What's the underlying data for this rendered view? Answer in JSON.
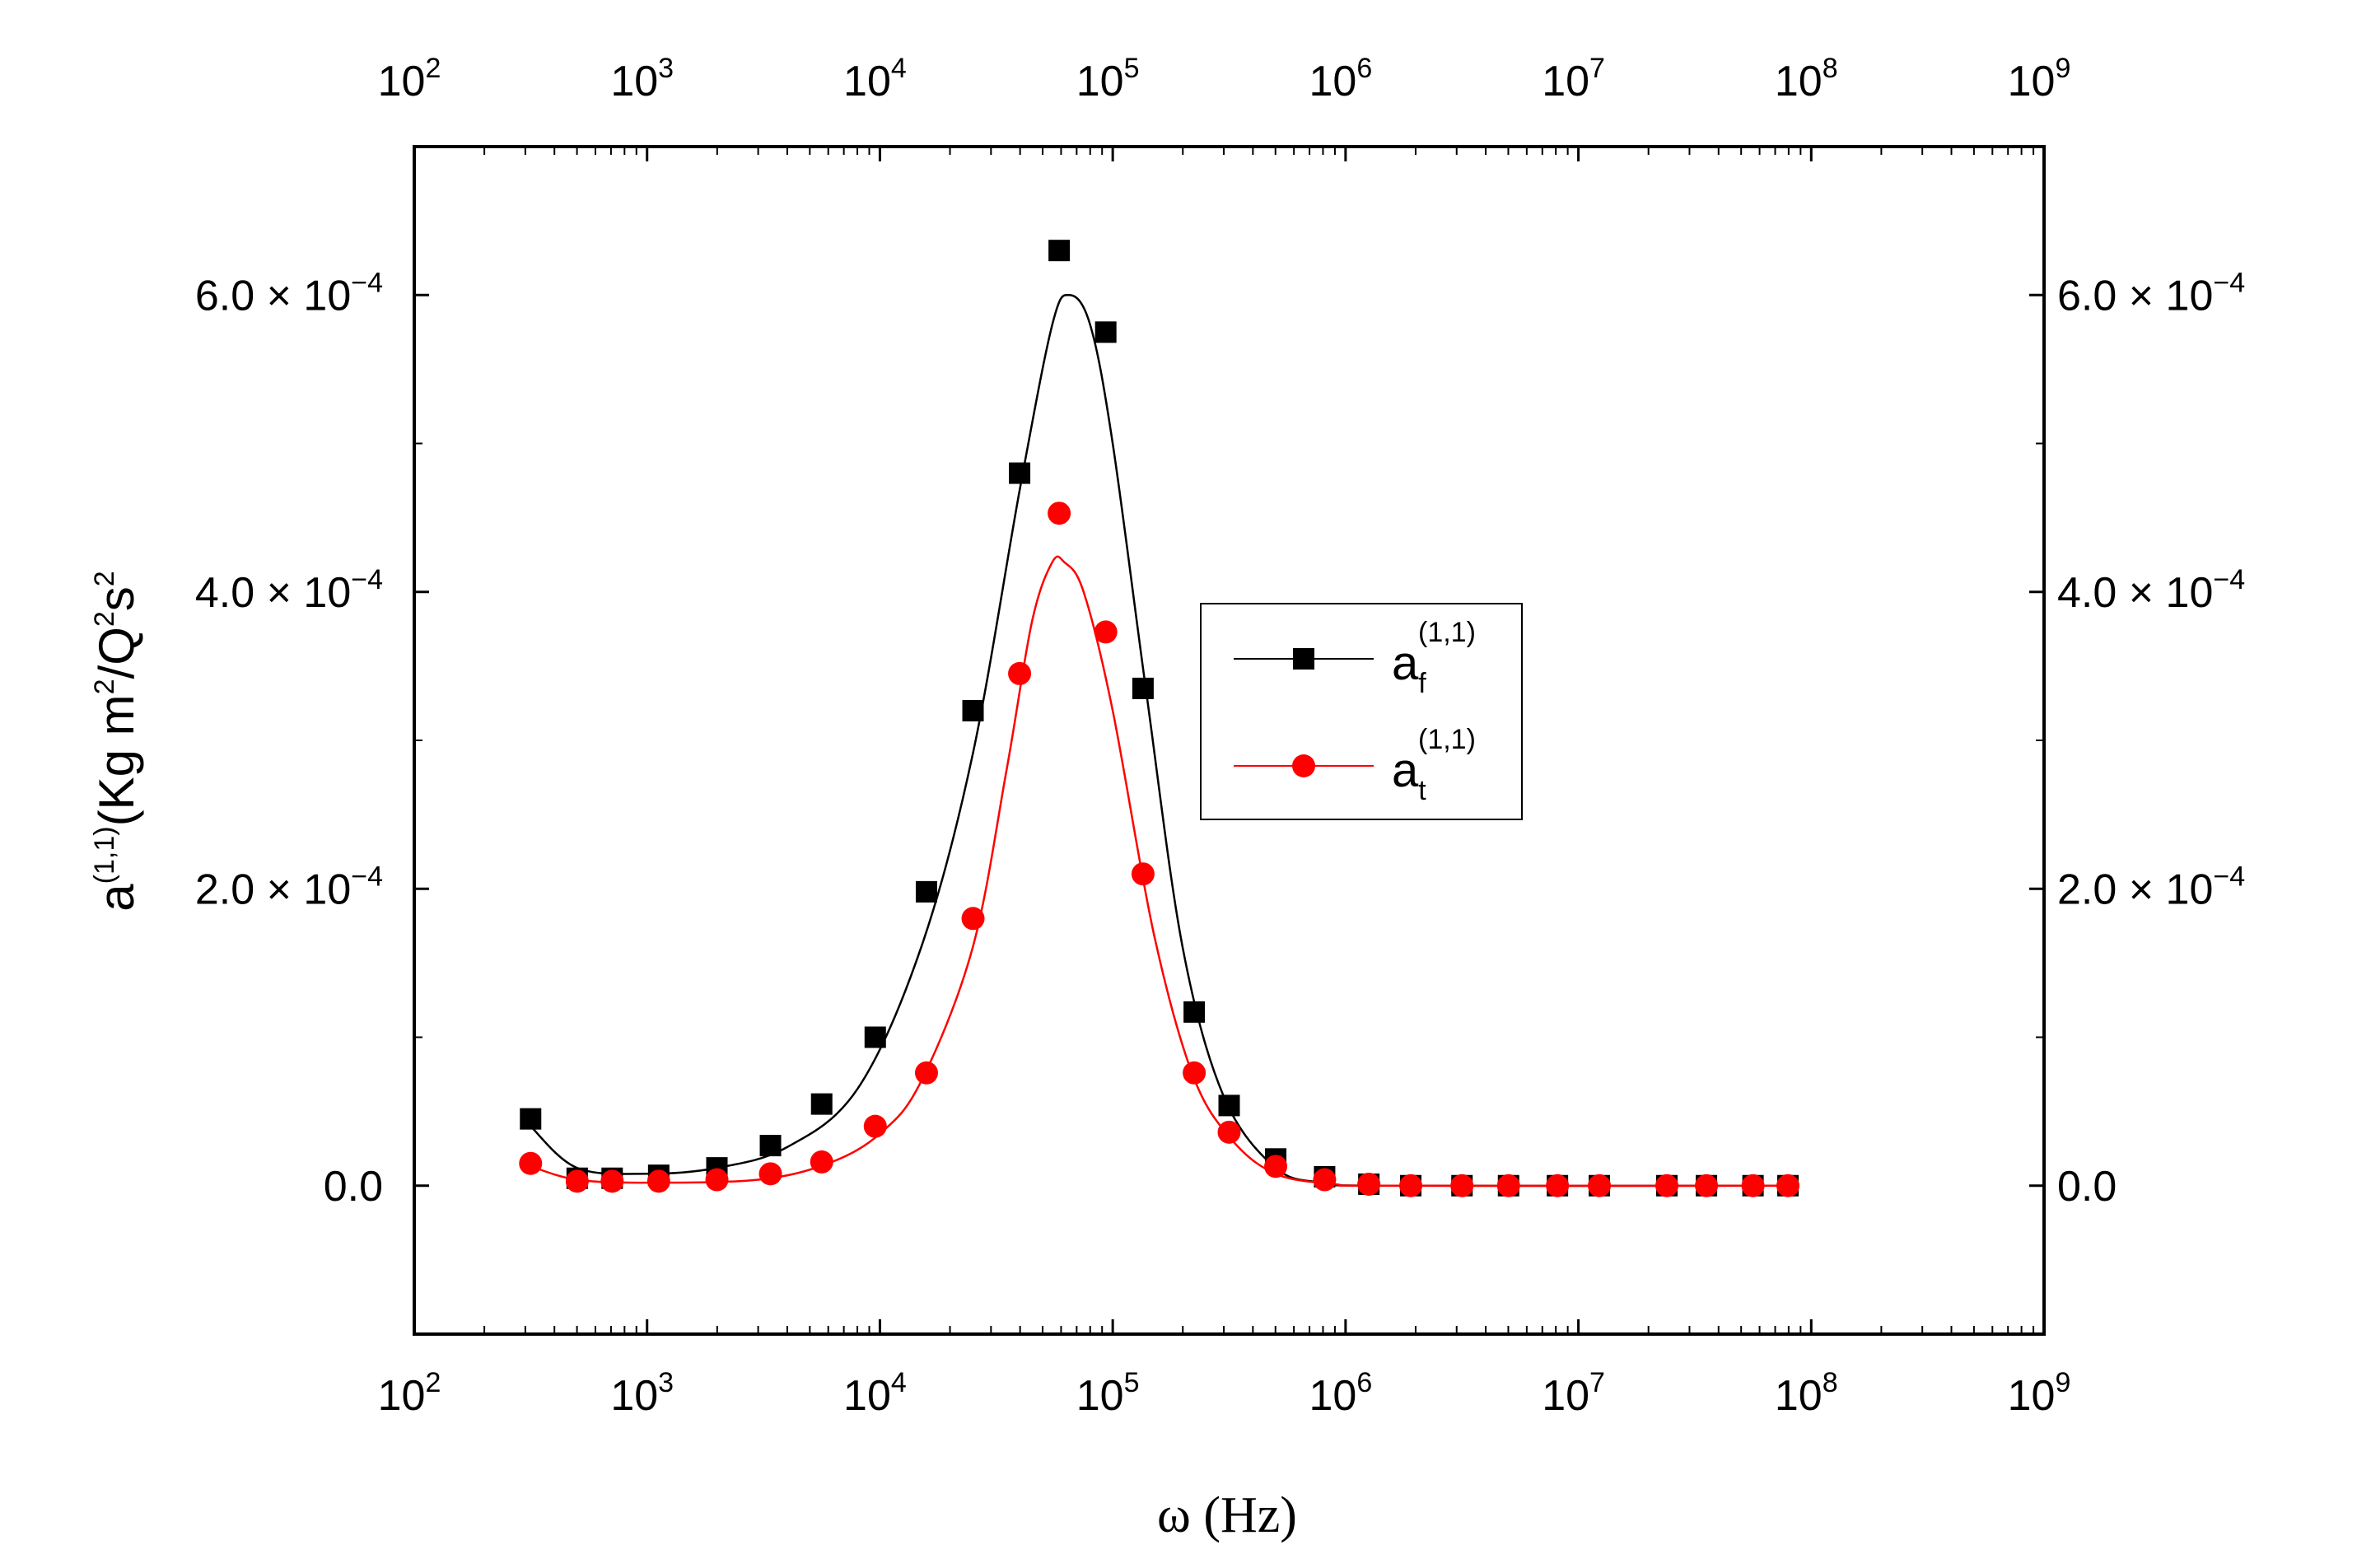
{
  "chart_data": {
    "type": "scatter",
    "title": "",
    "xlabel": "ω (Hz)",
    "ylabel": {
      "base": "a",
      "sup": "(1,1)",
      "text1": "(Kg m",
      "sup2": "2",
      "text2": "/Q",
      "sup3": "2",
      "text3": "s",
      "sup4": "2"
    },
    "xscale": "log",
    "xlim": [
      100,
      1000000000
    ],
    "ylim": [
      -0.0001,
      0.0007
    ],
    "x_ticks": [
      {
        "base": "10",
        "exp": "2"
      },
      {
        "base": "10",
        "exp": "3"
      },
      {
        "base": "10",
        "exp": "4"
      },
      {
        "base": "10",
        "exp": "5"
      },
      {
        "base": "10",
        "exp": "6"
      },
      {
        "base": "10",
        "exp": "7"
      },
      {
        "base": "10",
        "exp": "8"
      },
      {
        "base": "10",
        "exp": "9"
      }
    ],
    "x_tick_values": [
      100,
      1000,
      10000,
      100000,
      1000000,
      10000000,
      100000000,
      1000000000
    ],
    "y_ticks": [
      {
        "value": 0,
        "mant": "0.0",
        "exp": ""
      },
      {
        "value": 0.0002,
        "mant": "2.0 × 10",
        "exp": "−4"
      },
      {
        "value": 0.0004,
        "mant": "4.0 × 10",
        "exp": "−4"
      },
      {
        "value": 0.0006,
        "mant": "6.0 × 10",
        "exp": "−4"
      }
    ],
    "legend_position": "center-right",
    "series": [
      {
        "name": "a_f^(1,1)",
        "legend_base": "a",
        "legend_sub": "f",
        "legend_sup": "(1,1)",
        "color": "#000000",
        "marker": "square",
        "points": [
          [
            316,
            4.5e-05
          ],
          [
            501,
            5e-06
          ],
          [
            708,
            5e-06
          ],
          [
            1122,
            7e-06
          ],
          [
            1995,
            1.2e-05
          ],
          [
            3388,
            2.7e-05
          ],
          [
            5623,
            5.5e-05
          ],
          [
            9550,
            0.0001
          ],
          [
            15849,
            0.000198
          ],
          [
            25119,
            0.00032
          ],
          [
            39811,
            0.00048
          ],
          [
            58884,
            0.00063
          ],
          [
            93325,
            0.000575
          ],
          [
            134896,
            0.000335
          ],
          [
            223872,
            0.000117
          ],
          [
            316228,
            5.4e-05
          ],
          [
            501187,
            1.8e-05
          ],
          [
            812831,
            6e-06
          ],
          [
            1258925,
            1e-06
          ],
          [
            1905461,
            0
          ],
          [
            3162278,
            0
          ],
          [
            5011872,
            0
          ],
          [
            8128305,
            0
          ],
          [
            12302688,
            0
          ],
          [
            23988329,
            0
          ],
          [
            35481339,
            0
          ],
          [
            56234133,
            0
          ],
          [
            79432823,
            0
          ]
        ],
        "fit": [
          [
            316,
            4e-05
          ],
          [
            500,
            1.2e-05
          ],
          [
            1000,
            8e-06
          ],
          [
            2000,
            1.2e-05
          ],
          [
            4000,
            2.6e-05
          ],
          [
            8000,
            6.5e-05
          ],
          [
            15000,
            0.00016
          ],
          [
            25000,
            0.00029
          ],
          [
            40000,
            0.00047
          ],
          [
            55000,
            0.00058
          ],
          [
            65000,
            0.0006
          ],
          [
            80000,
            0.00058
          ],
          [
            100000,
            0.0005
          ],
          [
            140000,
            0.00033
          ],
          [
            200000,
            0.00016
          ],
          [
            300000,
            6e-05
          ],
          [
            500000,
            1.2e-05
          ],
          [
            800000,
            2e-06
          ],
          [
            1500000,
            0
          ],
          [
            80000000,
            0
          ]
        ]
      },
      {
        "name": "a_t^(1,1)",
        "legend_base": "a",
        "legend_sub": "t",
        "legend_sup": "(1,1)",
        "color": "#ff0000",
        "marker": "circle",
        "points": [
          [
            316,
            1.5e-05
          ],
          [
            501,
            3e-06
          ],
          [
            708,
            3e-06
          ],
          [
            1122,
            3e-06
          ],
          [
            1995,
            4e-06
          ],
          [
            3388,
            8e-06
          ],
          [
            5623,
            1.6e-05
          ],
          [
            9550,
            4e-05
          ],
          [
            15849,
            7.6e-05
          ],
          [
            25119,
            0.00018
          ],
          [
            39811,
            0.000345
          ],
          [
            58884,
            0.000453
          ],
          [
            93325,
            0.000373
          ],
          [
            134896,
            0.00021
          ],
          [
            223872,
            7.6e-05
          ],
          [
            316228,
            3.6e-05
          ],
          [
            501187,
            1.3e-05
          ],
          [
            812831,
            4e-06
          ],
          [
            1258925,
            1e-06
          ],
          [
            1905461,
            0
          ],
          [
            3162278,
            0
          ],
          [
            5011872,
            0
          ],
          [
            8128305,
            0
          ],
          [
            12302688,
            0
          ],
          [
            23988329,
            0
          ],
          [
            35481339,
            0
          ],
          [
            56234133,
            0
          ],
          [
            79432823,
            0
          ]
        ],
        "fit": [
          [
            316,
            1.3e-05
          ],
          [
            500,
            4e-06
          ],
          [
            1000,
            2e-06
          ],
          [
            3000,
            4e-06
          ],
          [
            6000,
            1.5e-05
          ],
          [
            10000,
            3.5e-05
          ],
          [
            15000,
            7e-05
          ],
          [
            25000,
            0.00016
          ],
          [
            35000,
            0.00028
          ],
          [
            45000,
            0.00038
          ],
          [
            55000,
            0.00042
          ],
          [
            62000,
            0.00042
          ],
          [
            75000,
            0.0004
          ],
          [
            100000,
            0.00032
          ],
          [
            150000,
            0.00017
          ],
          [
            220000,
            7.5e-05
          ],
          [
            320000,
            3.2e-05
          ],
          [
            500000,
            8e-06
          ],
          [
            900000,
            1e-06
          ],
          [
            1500000,
            0
          ],
          [
            80000000,
            0
          ]
        ]
      }
    ]
  }
}
